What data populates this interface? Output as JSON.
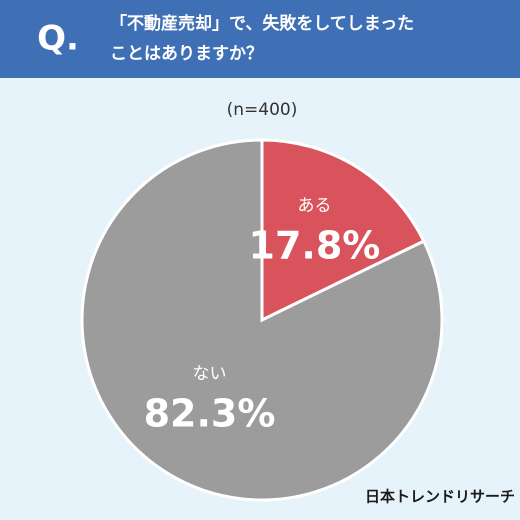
{
  "header": {
    "mark": "Q.",
    "lines": [
      "「不動産売却」で、失敗をしてしまった",
      "ことはありますか？"
    ]
  },
  "chart_data": {
    "type": "pie",
    "subtitle": "(n=400)",
    "categories": [
      "ある",
      "ない"
    ],
    "values": [
      17.8,
      82.3
    ],
    "value_labels": [
      "17.8%",
      "82.3%"
    ],
    "colors": [
      "#d9535c",
      "#9c9c9c"
    ]
  },
  "footer": "日本トレンドリサーチ"
}
